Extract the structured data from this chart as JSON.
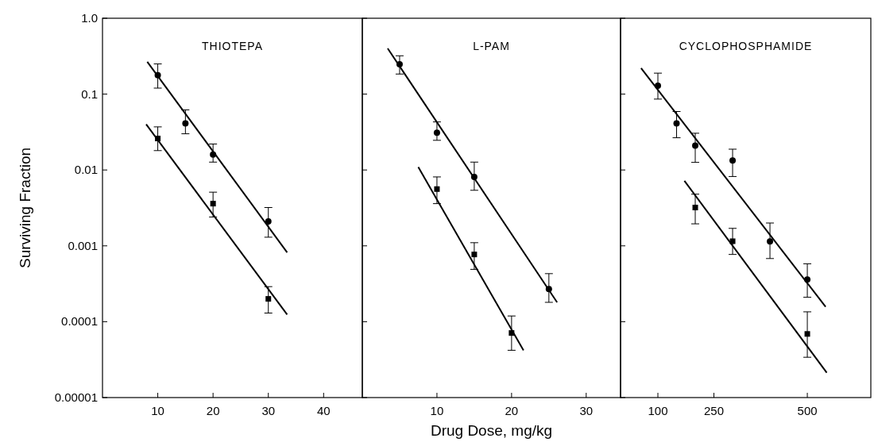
{
  "chart_data": [
    {
      "type": "scatter",
      "title": "THIOTEPA",
      "ylabel": "Surviving Fraction",
      "log": "y",
      "xlim": [
        0,
        47
      ],
      "xticks": [
        10,
        20,
        30,
        40
      ],
      "ylim": [
        1e-05,
        1
      ],
      "yticks": [
        {
          "value": 1,
          "label": "1.0"
        },
        0.1,
        0.01,
        0.001,
        0.0001,
        {
          "value": 1e-05,
          "label": "0.00001"
        }
      ],
      "x": [
        10,
        15,
        20,
        30
      ],
      "series": [
        {
          "color": "#000000",
          "marker": "circle",
          "values": [
            0.178,
            0.041,
            0.016,
            0.0021
          ],
          "errors": [
            [
              0.12,
              0.25
            ],
            [
              0.03,
              0.062
            ],
            [
              0.0127,
              0.022
            ],
            [
              0.0013,
              0.0032
            ]
          ]
        },
        {
          "color": "#000000",
          "marker": "square",
          "x": [
            10,
            20,
            30
          ],
          "values": [
            0.026,
            0.0036,
            0.0002
          ],
          "errors": [
            [
              0.018,
              0.037
            ],
            [
              0.0024,
              0.0051
            ],
            [
              0.00013,
              0.00029
            ]
          ]
        },
        {
          "type": "line",
          "color": "#000000",
          "x": [
            8.1,
            33.4
          ],
          "values": [
            0.267,
            0.00082
          ]
        },
        {
          "type": "line",
          "color": "#000000",
          "x": [
            7.9,
            33.4
          ],
          "values": [
            0.04,
            0.000124
          ]
        }
      ]
    },
    {
      "type": "scatter",
      "title": "L-PAM",
      "xlabel": "Drug Dose, mg/kg",
      "log": "y",
      "tick_labels": "x",
      "xlim": [
        0,
        34.6
      ],
      "xticks": [
        10,
        20,
        30
      ],
      "ylim": [
        1e-05,
        1
      ],
      "yticks": [
        {
          "value": 1,
          "label": null
        },
        {
          "value": 0.1,
          "label": null
        },
        {
          "value": 0.01,
          "label": null
        },
        {
          "value": 0.001,
          "label": null
        },
        {
          "value": 0.0001,
          "label": null
        },
        {
          "value": 1e-05,
          "label": null
        }
      ],
      "series": [
        {
          "color": "#000000",
          "marker": "circle",
          "x": [
            5,
            10,
            15,
            25
          ],
          "values": [
            0.247,
            0.031,
            0.0081,
            0.00027
          ],
          "errors": [
            [
              0.184,
              0.32
            ],
            [
              0.0246,
              0.043
            ],
            [
              0.0054,
              0.0127
            ],
            [
              0.00018,
              0.00043
            ]
          ]
        },
        {
          "color": "#000000",
          "marker": "square",
          "x": [
            10,
            15,
            20
          ],
          "values": [
            0.0056,
            0.00077,
            7.1e-05
          ],
          "errors": [
            [
              0.0036,
              0.0081
            ],
            [
              0.00049,
              0.0011
            ],
            [
              4.2e-05,
              0.000119
            ]
          ]
        },
        {
          "type": "line",
          "color": "#000000",
          "x": [
            3.4,
            26.1
          ],
          "values": [
            0.4,
            0.00018
          ]
        },
        {
          "type": "line",
          "color": "#000000",
          "x": [
            7.5,
            21.6
          ],
          "values": [
            0.0109,
            4.2e-05
          ]
        }
      ]
    },
    {
      "type": "scatter",
      "title": "CYCLOPHOSPHAMIDE",
      "log": "y",
      "tick_labels": "x",
      "xlim": [
        0,
        670
      ],
      "xticks": [
        100,
        250,
        500
      ],
      "ylim": [
        1e-05,
        1
      ],
      "yticks": [
        {
          "value": 1,
          "label": null
        },
        {
          "value": 0.1,
          "label": null
        },
        {
          "value": 0.01,
          "label": null
        },
        {
          "value": 0.001,
          "label": null
        },
        {
          "value": 0.0001,
          "label": null
        },
        {
          "value": 1e-05,
          "label": null
        }
      ],
      "series": [
        {
          "color": "#000000",
          "marker": "circle",
          "x": [
            100,
            150,
            200,
            300,
            400,
            500
          ],
          "values": [
            0.129,
            0.041,
            0.021,
            0.0133,
            0.00114,
            0.00036
          ],
          "errors": [
            [
              0.086,
              0.189
            ],
            [
              0.0266,
              0.059
            ],
            [
              0.0126,
              0.0305
            ],
            [
              0.0082,
              0.0188
            ],
            [
              0.00068,
              0.002
            ],
            [
              0.00021,
              0.00058
            ]
          ]
        },
        {
          "color": "#000000",
          "marker": "square",
          "x": [
            200,
            300,
            500
          ],
          "values": [
            0.0032,
            0.00115,
            6.9e-05
          ],
          "errors": [
            [
              0.00195,
              0.0048
            ],
            [
              0.00077,
              0.0017
            ],
            [
              3.4e-05,
              0.000135
            ]
          ]
        },
        {
          "type": "line",
          "color": "#000000",
          "x": [
            55,
            549
          ],
          "values": [
            0.22,
            0.000157
          ]
        },
        {
          "type": "line",
          "color": "#000000",
          "x": [
            171,
            552
          ],
          "values": [
            0.0072,
            2.13e-05
          ]
        }
      ]
    }
  ]
}
